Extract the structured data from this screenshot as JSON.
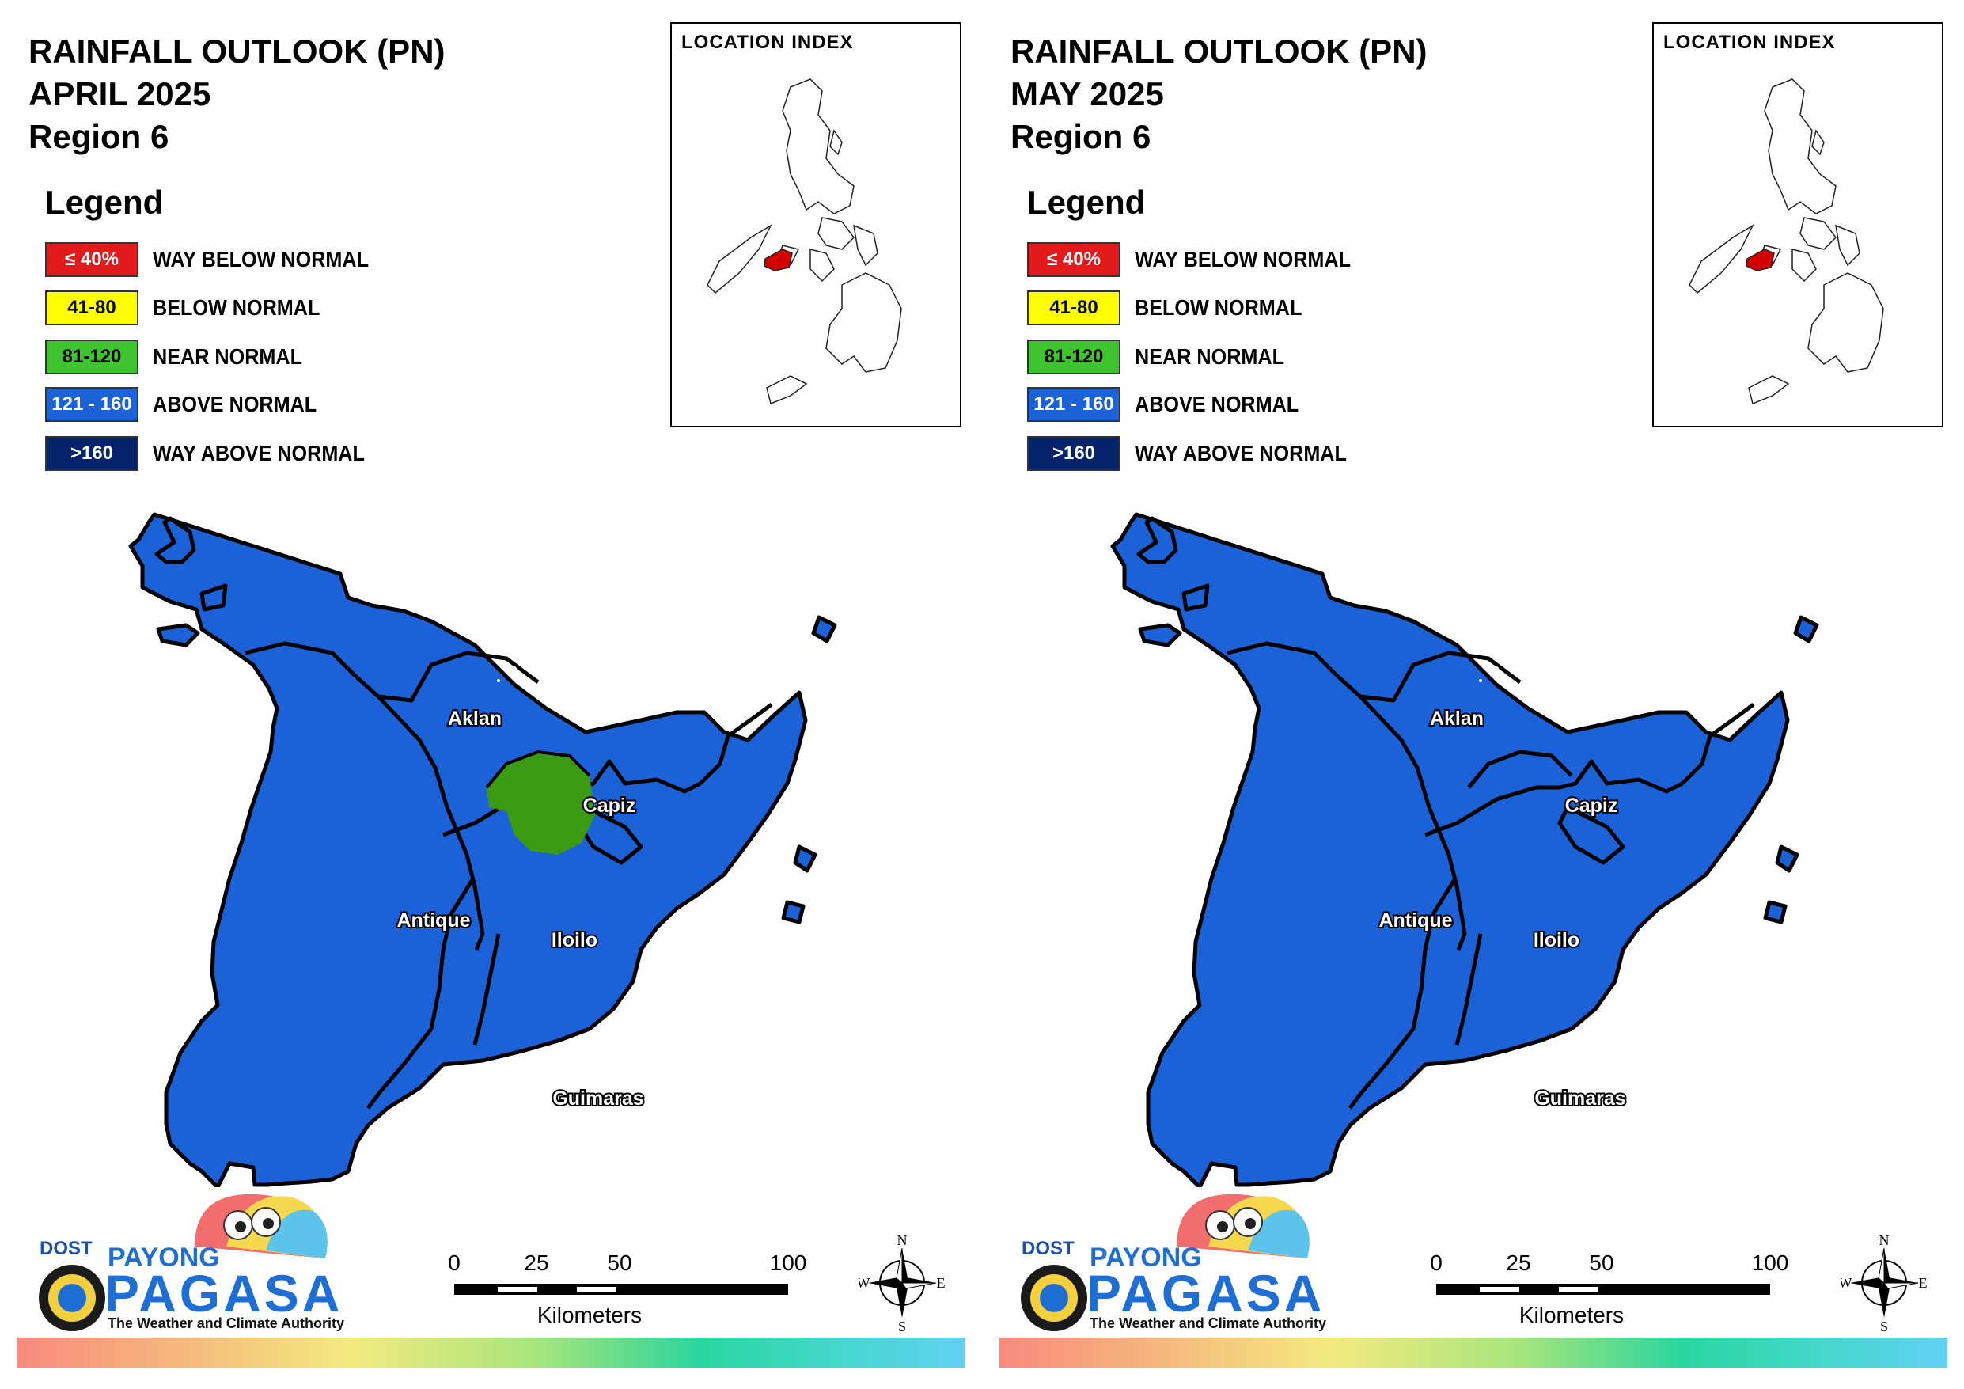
{
  "colors": {
    "way_below_normal": "#e31a1c",
    "below_normal": "#ffff00",
    "near_normal": "#3ec42e",
    "above_normal": "#1b62d8",
    "way_above_normal": "#05236b",
    "map_fill": "#1b62d8",
    "near_normal_area": "#3a9b12",
    "index_highlight": "#d40000"
  },
  "legend": {
    "heading": "Legend",
    "items": [
      {
        "swatch": "≤ 40%",
        "label": "WAY BELOW NORMAL",
        "color": "#e31a1c",
        "text_color": "#ffffff"
      },
      {
        "swatch": "41-80",
        "label": "BELOW NORMAL",
        "color": "#ffff00",
        "text_color": "#000000"
      },
      {
        "swatch": "81-120",
        "label": "NEAR NORMAL",
        "color": "#3ec42e",
        "text_color": "#000000"
      },
      {
        "swatch": "121 - 160",
        "label": "ABOVE NORMAL",
        "color": "#1b62d8",
        "text_color": "#ffffff"
      },
      {
        "swatch": ">160",
        "label": "WAY ABOVE NORMAL",
        "color": "#05236b",
        "text_color": "#ffffff"
      }
    ]
  },
  "panels": [
    {
      "title_line1": "RAINFALL OUTLOOK (PN)",
      "title_line2": "APRIL 2025",
      "title_line3": "Region 6",
      "near_normal_area": true
    },
    {
      "title_line1": "RAINFALL OUTLOOK (PN)",
      "title_line2": "MAY 2025",
      "title_line3": "Region 6",
      "near_normal_area": false
    }
  ],
  "location_index": {
    "title": "LOCATION INDEX"
  },
  "provinces": [
    "Aklan",
    "Capiz",
    "Antique",
    "Iloilo",
    "Guimaras"
  ],
  "scale_bar": {
    "ticks": [
      "0",
      "25",
      "50",
      "100"
    ],
    "unit": "Kilometers"
  },
  "compass": {
    "n": "N",
    "s": "S",
    "e": "E",
    "w": "W"
  },
  "logo": {
    "dost": "DOST",
    "payong": "PAYONG",
    "pagasa": "PAGASA",
    "tagline": "The Weather and Climate Authority"
  }
}
